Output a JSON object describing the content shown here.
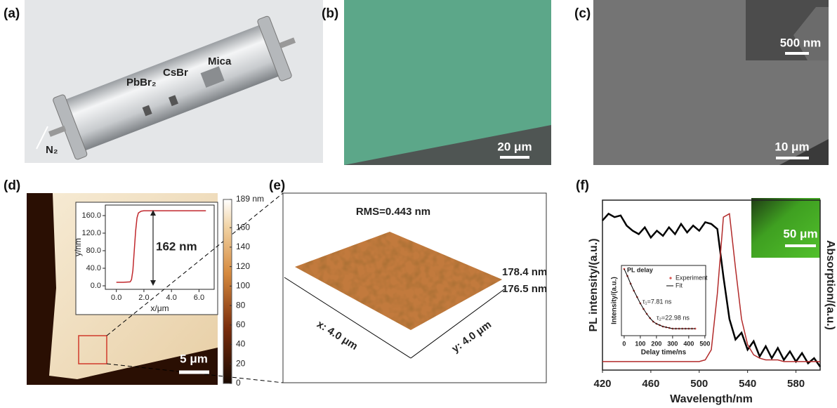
{
  "panels": {
    "a": {
      "label": "(a)",
      "precursor1": "PbBr₂",
      "precursor2": "CsBr",
      "substrate": "Mica",
      "gas": "N₂"
    },
    "b": {
      "label": "(b)",
      "scale_bar": "20 μm"
    },
    "c": {
      "label": "(c)",
      "inset_scale_bar": "500 nm",
      "scale_bar": "10 μm"
    },
    "d": {
      "label": "(d)",
      "scale_bar": "5 μm"
    },
    "e": {
      "label": "(e)",
      "rms": "RMS=0.443 nm",
      "z_max": "178.4 nm",
      "z_min": "176.5 nm",
      "x_size": "x: 4.0 μm",
      "y_size": "y: 4.0 μm"
    },
    "f": {
      "label": "(f)",
      "scale_bar": "50 μm"
    }
  },
  "chart_data": [
    {
      "type": "line",
      "x_label": "x/μm",
      "y_label": "y/nm",
      "annotation": "162 nm",
      "color": "#c0282d",
      "x": [
        0,
        0.5,
        1,
        1.1,
        1.2,
        1.3,
        1.4,
        1.5,
        1.6,
        1.8,
        2,
        3,
        4,
        5,
        6.5
      ],
      "values": [
        8,
        8,
        9,
        14,
        35,
        80,
        125,
        155,
        166,
        170,
        171,
        171,
        171,
        171,
        171
      ],
      "xlim": [
        -0.8,
        7.1
      ],
      "ylim": [
        -8,
        184
      ],
      "xticks": [
        {
          "value": 0,
          "label": "0.0"
        },
        {
          "value": 2,
          "label": "2.0"
        },
        {
          "value": 4,
          "label": "4.0"
        },
        {
          "value": 6,
          "label": "6.0"
        }
      ],
      "yticks": [
        {
          "value": 0,
          "label": "0.0"
        },
        {
          "value": 40,
          "label": "40.0"
        },
        {
          "value": 80,
          "label": "80.0"
        },
        {
          "value": 120,
          "label": "120.0"
        },
        {
          "value": 160,
          "label": "160.0"
        }
      ]
    },
    {
      "type": "colorbar",
      "ylim": [
        0,
        189
      ],
      "yticks": [
        0,
        20,
        40,
        60,
        80,
        100,
        120,
        140,
        160,
        {
          "value": 189,
          "label": "189 nm"
        }
      ]
    },
    {
      "type": "line",
      "x_label": "Wavelength/nm",
      "y_label": "PL intensity/(a.u.)",
      "y2_label": "Absorption/(a.u.)",
      "x": [
        420,
        425,
        430,
        435,
        440,
        445,
        450,
        455,
        460,
        465,
        470,
        475,
        480,
        485,
        490,
        495,
        500,
        505,
        510,
        515,
        520,
        525,
        530,
        535,
        540,
        545,
        550,
        555,
        560,
        565,
        570,
        575,
        580,
        585,
        590,
        595,
        600
      ],
      "series": [
        {
          "color": "#000000",
          "values": [
            0.88,
            0.92,
            0.9,
            0.91,
            0.85,
            0.82,
            0.8,
            0.84,
            0.78,
            0.82,
            0.79,
            0.84,
            0.8,
            0.86,
            0.81,
            0.85,
            0.82,
            0.87,
            0.86,
            0.83,
            0.55,
            0.3,
            0.18,
            0.22,
            0.12,
            0.17,
            0.08,
            0.14,
            0.07,
            0.13,
            0.06,
            0.11,
            0.05,
            0.1,
            0.04,
            0.07,
            0.02
          ]
        },
        {
          "color": "#b22a2a",
          "values": [
            0.05,
            0.05,
            0.05,
            0.05,
            0.05,
            0.05,
            0.05,
            0.05,
            0.05,
            0.05,
            0.05,
            0.05,
            0.05,
            0.05,
            0.05,
            0.05,
            0.05,
            0.06,
            0.12,
            0.45,
            0.9,
            0.92,
            0.6,
            0.3,
            0.15,
            0.09,
            0.07,
            0.06,
            0.06,
            0.06,
            0.05,
            0.05,
            0.05,
            0.05,
            0.05,
            0.05,
            0.05
          ]
        }
      ],
      "xlim": [
        420,
        600
      ],
      "ylim": [
        0,
        1
      ],
      "xticks": [
        420,
        460,
        500,
        540,
        580
      ]
    },
    {
      "type": "scatter",
      "title": "PL delay",
      "x_label": "Delay time/ns",
      "y_label": "Intensity/(a.u.)",
      "annotations": [
        "τ₁=7.81 ns",
        "τ₂=22.98 ns"
      ],
      "x": [
        0,
        20,
        40,
        60,
        80,
        100,
        120,
        140,
        160,
        180,
        200,
        220,
        240,
        260,
        280,
        300,
        320,
        340,
        360,
        380,
        400,
        420,
        440
      ],
      "series": [
        {
          "name": "Experiment",
          "color": "#d9534f",
          "style": "points",
          "values": [
            0.95,
            0.85,
            0.74,
            0.64,
            0.55,
            0.46,
            0.38,
            0.31,
            0.25,
            0.2,
            0.17,
            0.15,
            0.13,
            0.12,
            0.11,
            0.1,
            0.1,
            0.1,
            0.1,
            0.1,
            0.1,
            0.1,
            0.1
          ]
        },
        {
          "name": "Fit",
          "color": "#000000",
          "style": "line",
          "values": [
            0.95,
            0.85,
            0.74,
            0.64,
            0.55,
            0.46,
            0.38,
            0.31,
            0.25,
            0.2,
            0.17,
            0.15,
            0.13,
            0.12,
            0.11,
            0.1,
            0.1,
            0.1,
            0.1,
            0.1,
            0.1,
            0.1,
            0.1
          ]
        }
      ],
      "xlim": [
        -17,
        505
      ],
      "ylim": [
        0,
        1
      ],
      "xticks": [
        0,
        100,
        200,
        300,
        400,
        500
      ]
    }
  ]
}
